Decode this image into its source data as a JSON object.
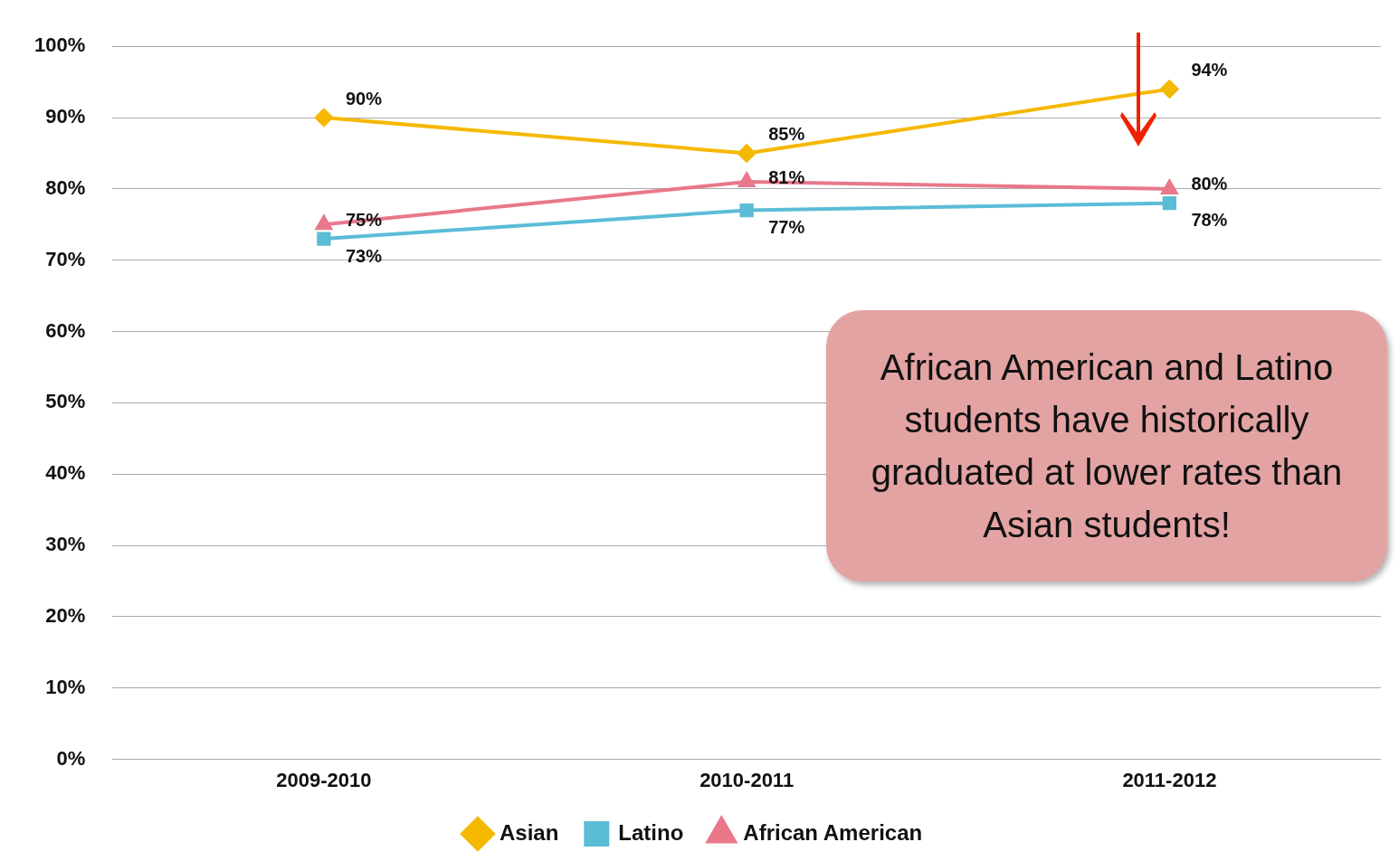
{
  "chart_data": {
    "type": "line",
    "categories": [
      "2009-2010",
      "2010-2011",
      "2011-2012"
    ],
    "series": [
      {
        "name": "Asian",
        "color": "#f5b800",
        "values": [
          90,
          85,
          94
        ],
        "value_labels": [
          "90%",
          "85%",
          "94%"
        ],
        "marker": "diamond"
      },
      {
        "name": "Latino",
        "color": "#5bbcd6",
        "values": [
          73,
          77,
          78
        ],
        "value_labels": [
          "73%",
          "77%",
          "78%"
        ],
        "marker": "square"
      },
      {
        "name": "African American",
        "color": "#e8788a",
        "values": [
          75,
          81,
          80
        ],
        "value_labels": [
          "75%",
          "81%",
          "80%"
        ],
        "marker": "triangle"
      }
    ],
    "ylim": [
      0,
      100
    ],
    "yticks": [
      {
        "value": 0,
        "label": "0%"
      },
      {
        "value": 10,
        "label": "10%"
      },
      {
        "value": 20,
        "label": "20%"
      },
      {
        "value": 30,
        "label": "30%"
      },
      {
        "value": 40,
        "label": "40%"
      },
      {
        "value": 50,
        "label": "50%"
      },
      {
        "value": 60,
        "label": "60%"
      },
      {
        "value": 70,
        "label": "70%"
      },
      {
        "value": 80,
        "label": "80%"
      },
      {
        "value": 90,
        "label": "90%"
      },
      {
        "value": 100,
        "label": "100%"
      }
    ],
    "grid": "y",
    "legend": "bottom",
    "line_style": "solid",
    "annotations": [
      "African American and Latino students have historically graduated at lower rates than Asian students!"
    ]
  }
}
